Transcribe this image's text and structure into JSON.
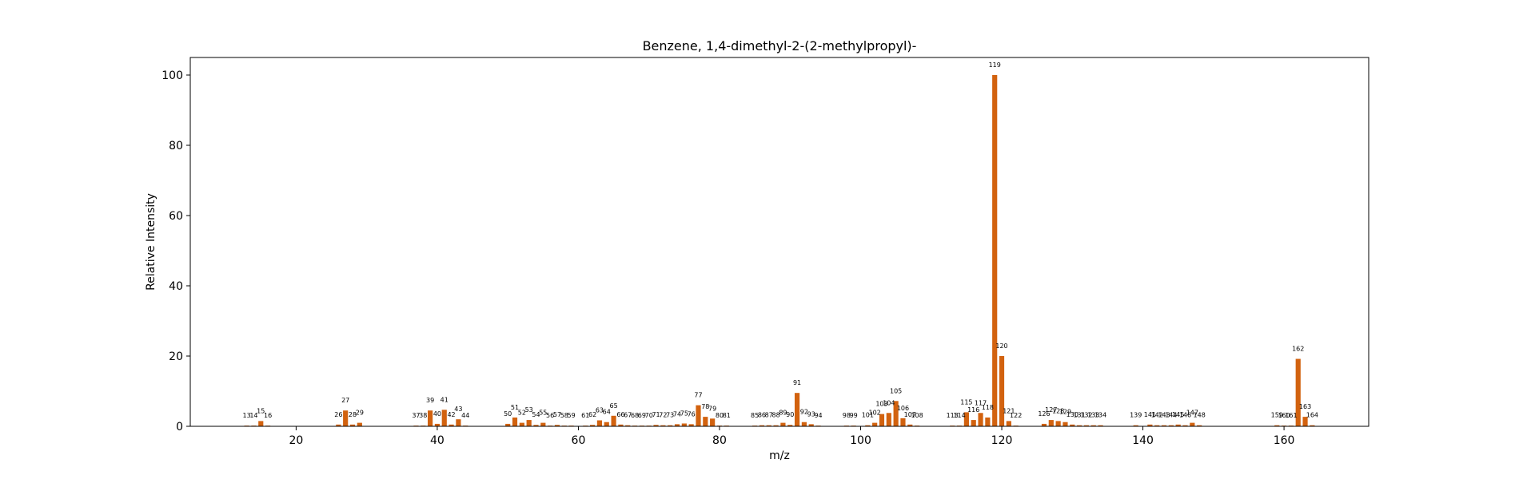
{
  "chart_data": {
    "type": "bar",
    "title": "Benzene, 1,4-dimethyl-2-(2-methylpropyl)-",
    "xlabel": "m/z",
    "ylabel": "Relative Intensity",
    "xlim": [
      5,
      172
    ],
    "ylim": [
      0,
      105
    ],
    "xticks": [
      20,
      40,
      60,
      80,
      100,
      120,
      140,
      160
    ],
    "yticks": [
      0,
      20,
      40,
      60,
      80,
      100
    ],
    "grid": false,
    "bar_color": "#d2620f",
    "x": [
      13,
      14,
      15,
      16,
      26,
      27,
      28,
      29,
      37,
      38,
      39,
      40,
      41,
      42,
      43,
      44,
      50,
      51,
      52,
      53,
      54,
      55,
      56,
      57,
      58,
      59,
      61,
      62,
      63,
      64,
      65,
      66,
      67,
      68,
      69,
      70,
      71,
      72,
      73,
      74,
      75,
      76,
      77,
      78,
      79,
      80,
      81,
      85,
      86,
      87,
      88,
      89,
      90,
      91,
      92,
      93,
      94,
      98,
      99,
      101,
      102,
      103,
      104,
      105,
      106,
      107,
      108,
      113,
      114,
      115,
      116,
      117,
      118,
      119,
      120,
      121,
      122,
      126,
      127,
      128,
      129,
      130,
      131,
      132,
      133,
      134,
      139,
      141,
      142,
      143,
      144,
      145,
      146,
      147,
      148,
      159,
      160,
      161,
      162,
      163,
      164
    ],
    "values": [
      0.2,
      0.2,
      1.5,
      0.2,
      0.5,
      4.5,
      0.5,
      1.0,
      0.2,
      0.2,
      4.5,
      0.7,
      4.7,
      0.5,
      2.0,
      0.2,
      0.7,
      2.5,
      1.0,
      1.8,
      0.4,
      1.0,
      0.2,
      0.4,
      0.2,
      0.2,
      0.2,
      0.4,
      1.7,
      1.2,
      3.0,
      0.5,
      0.3,
      0.2,
      0.2,
      0.2,
      0.4,
      0.3,
      0.3,
      0.6,
      0.8,
      0.6,
      6.0,
      2.7,
      2.2,
      0.2,
      0.2,
      0.2,
      0.3,
      0.3,
      0.3,
      1.0,
      0.4,
      9.5,
      1.2,
      0.6,
      0.2,
      0.2,
      0.2,
      0.3,
      1.0,
      3.5,
      3.8,
      7.2,
      2.3,
      0.5,
      0.2,
      0.2,
      0.2,
      4.0,
      1.8,
      3.8,
      2.5,
      100,
      20,
      1.5,
      0.2,
      0.7,
      1.8,
      1.5,
      1.2,
      0.5,
      0.3,
      0.3,
      0.3,
      0.3,
      0.3,
      0.5,
      0.3,
      0.3,
      0.3,
      0.5,
      0.3,
      1.0,
      0.3,
      0.3,
      0.2,
      0.2,
      19.2,
      2.7,
      0.3
    ]
  }
}
